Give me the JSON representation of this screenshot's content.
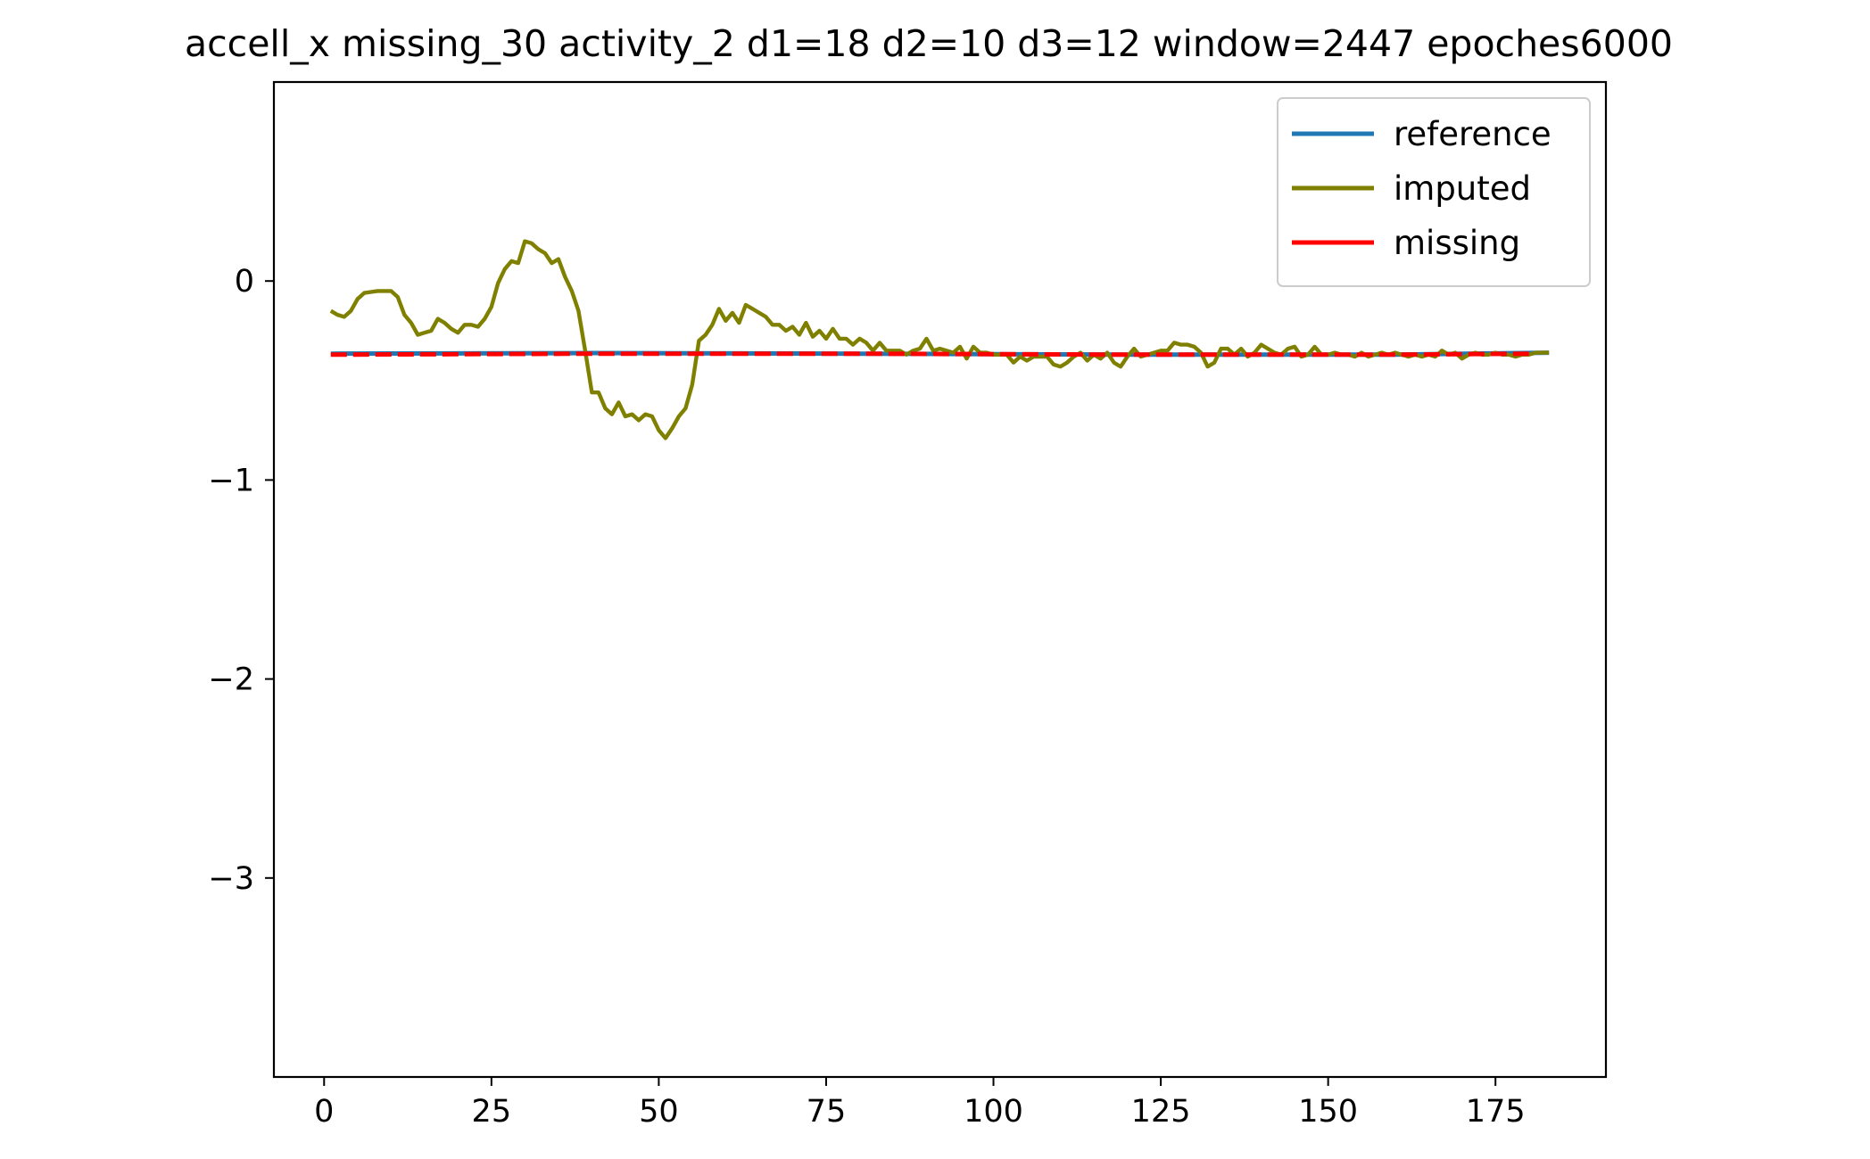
{
  "chart_data": {
    "type": "line",
    "title": "accell_x missing_30 activity_2 d1=18 d2=10 d3=12 window=2447 epoches6000",
    "xlabel": "",
    "ylabel": "",
    "xlim": [
      -7.5,
      191.5
    ],
    "ylim": [
      -4.0,
      1.0
    ],
    "x_ticks": [
      {
        "value": 0,
        "label": "0"
      },
      {
        "value": 25,
        "label": "25"
      },
      {
        "value": 50,
        "label": "50"
      },
      {
        "value": 75,
        "label": "75"
      },
      {
        "value": 100,
        "label": "100"
      },
      {
        "value": 125,
        "label": "125"
      },
      {
        "value": 150,
        "label": "150"
      },
      {
        "value": 175,
        "label": "175"
      }
    ],
    "y_ticks": [
      {
        "value": 0,
        "label": "0"
      },
      {
        "value": -1,
        "label": "−1"
      },
      {
        "value": -2,
        "label": "−2"
      },
      {
        "value": -3,
        "label": "−3"
      }
    ],
    "grid": false,
    "legend_position": "top-right",
    "series": [
      {
        "name": "reference",
        "color": "#1f77b4",
        "points": [
          [
            1,
            -0.365
          ],
          [
            40,
            -0.362
          ],
          [
            80,
            -0.365
          ],
          [
            120,
            -0.37
          ],
          [
            160,
            -0.37
          ],
          [
            183,
            -0.36
          ]
        ]
      },
      {
        "name": "imputed",
        "color": "#808000",
        "points": [
          [
            1,
            -0.15
          ],
          [
            2,
            -0.17
          ],
          [
            3,
            -0.18
          ],
          [
            4,
            -0.15
          ],
          [
            5,
            -0.09
          ],
          [
            6,
            -0.06
          ],
          [
            7,
            -0.055
          ],
          [
            8,
            -0.05
          ],
          [
            9,
            -0.05
          ],
          [
            10,
            -0.05
          ],
          [
            11,
            -0.08
          ],
          [
            12,
            -0.17
          ],
          [
            13,
            -0.21
          ],
          [
            14,
            -0.27
          ],
          [
            15,
            -0.26
          ],
          [
            16,
            -0.25
          ],
          [
            17,
            -0.19
          ],
          [
            18,
            -0.21
          ],
          [
            19,
            -0.24
          ],
          [
            20,
            -0.26
          ],
          [
            21,
            -0.22
          ],
          [
            22,
            -0.22
          ],
          [
            23,
            -0.23
          ],
          [
            24,
            -0.19
          ],
          [
            25,
            -0.13
          ],
          [
            26,
            -0.01
          ],
          [
            27,
            0.06
          ],
          [
            28,
            0.1
          ],
          [
            29,
            0.09
          ],
          [
            30,
            0.2
          ],
          [
            31,
            0.19
          ],
          [
            32,
            0.16
          ],
          [
            33,
            0.14
          ],
          [
            34,
            0.09
          ],
          [
            35,
            0.11
          ],
          [
            36,
            0.02
          ],
          [
            37,
            -0.05
          ],
          [
            38,
            -0.15
          ],
          [
            39,
            -0.35
          ],
          [
            40,
            -0.56
          ],
          [
            41,
            -0.56
          ],
          [
            42,
            -0.64
          ],
          [
            43,
            -0.67
          ],
          [
            44,
            -0.61
          ],
          [
            45,
            -0.68
          ],
          [
            46,
            -0.67
          ],
          [
            47,
            -0.7
          ],
          [
            48,
            -0.67
          ],
          [
            49,
            -0.68
          ],
          [
            50,
            -0.75
          ],
          [
            51,
            -0.79
          ],
          [
            52,
            -0.74
          ],
          [
            53,
            -0.68
          ],
          [
            54,
            -0.64
          ],
          [
            55,
            -0.52
          ],
          [
            56,
            -0.3
          ],
          [
            57,
            -0.27
          ],
          [
            58,
            -0.22
          ],
          [
            59,
            -0.14
          ],
          [
            60,
            -0.2
          ],
          [
            61,
            -0.16
          ],
          [
            62,
            -0.21
          ],
          [
            63,
            -0.12
          ],
          [
            64,
            -0.14
          ],
          [
            65,
            -0.16
          ],
          [
            66,
            -0.18
          ],
          [
            67,
            -0.22
          ],
          [
            68,
            -0.22
          ],
          [
            69,
            -0.25
          ],
          [
            70,
            -0.23
          ],
          [
            71,
            -0.27
          ],
          [
            72,
            -0.21
          ],
          [
            73,
            -0.28
          ],
          [
            74,
            -0.25
          ],
          [
            75,
            -0.29
          ],
          [
            76,
            -0.24
          ],
          [
            77,
            -0.29
          ],
          [
            78,
            -0.29
          ],
          [
            79,
            -0.32
          ],
          [
            80,
            -0.29
          ],
          [
            81,
            -0.31
          ],
          [
            82,
            -0.35
          ],
          [
            83,
            -0.31
          ],
          [
            84,
            -0.35
          ],
          [
            85,
            -0.35
          ],
          [
            86,
            -0.35
          ],
          [
            87,
            -0.37
          ],
          [
            88,
            -0.35
          ],
          [
            89,
            -0.34
          ],
          [
            90,
            -0.29
          ],
          [
            91,
            -0.35
          ],
          [
            92,
            -0.34
          ],
          [
            93,
            -0.35
          ],
          [
            94,
            -0.36
          ],
          [
            95,
            -0.33
          ],
          [
            96,
            -0.39
          ],
          [
            97,
            -0.33
          ],
          [
            98,
            -0.36
          ],
          [
            99,
            -0.36
          ],
          [
            100,
            -0.37
          ],
          [
            101,
            -0.37
          ],
          [
            102,
            -0.37
          ],
          [
            103,
            -0.41
          ],
          [
            104,
            -0.38
          ],
          [
            105,
            -0.4
          ],
          [
            106,
            -0.38
          ],
          [
            107,
            -0.38
          ],
          [
            108,
            -0.38
          ],
          [
            109,
            -0.42
          ],
          [
            110,
            -0.43
          ],
          [
            111,
            -0.41
          ],
          [
            112,
            -0.38
          ],
          [
            113,
            -0.36
          ],
          [
            114,
            -0.4
          ],
          [
            115,
            -0.37
          ],
          [
            116,
            -0.39
          ],
          [
            117,
            -0.36
          ],
          [
            118,
            -0.41
          ],
          [
            119,
            -0.43
          ],
          [
            120,
            -0.38
          ],
          [
            121,
            -0.34
          ],
          [
            122,
            -0.38
          ],
          [
            123,
            -0.37
          ],
          [
            124,
            -0.36
          ],
          [
            125,
            -0.35
          ],
          [
            126,
            -0.35
          ],
          [
            127,
            -0.31
          ],
          [
            128,
            -0.32
          ],
          [
            129,
            -0.32
          ],
          [
            130,
            -0.33
          ],
          [
            131,
            -0.36
          ],
          [
            132,
            -0.43
          ],
          [
            133,
            -0.41
          ],
          [
            134,
            -0.34
          ],
          [
            135,
            -0.34
          ],
          [
            136,
            -0.37
          ],
          [
            137,
            -0.34
          ],
          [
            138,
            -0.38
          ],
          [
            139,
            -0.36
          ],
          [
            140,
            -0.32
          ],
          [
            141,
            -0.34
          ],
          [
            142,
            -0.36
          ],
          [
            143,
            -0.37
          ],
          [
            144,
            -0.34
          ],
          [
            145,
            -0.33
          ],
          [
            146,
            -0.38
          ],
          [
            147,
            -0.37
          ],
          [
            148,
            -0.33
          ],
          [
            149,
            -0.37
          ],
          [
            150,
            -0.37
          ],
          [
            151,
            -0.36
          ],
          [
            152,
            -0.37
          ],
          [
            153,
            -0.37
          ],
          [
            154,
            -0.38
          ],
          [
            155,
            -0.36
          ],
          [
            156,
            -0.38
          ],
          [
            157,
            -0.37
          ],
          [
            158,
            -0.36
          ],
          [
            159,
            -0.37
          ],
          [
            160,
            -0.36
          ],
          [
            161,
            -0.37
          ],
          [
            162,
            -0.38
          ],
          [
            163,
            -0.37
          ],
          [
            164,
            -0.38
          ],
          [
            165,
            -0.37
          ],
          [
            166,
            -0.38
          ],
          [
            167,
            -0.35
          ],
          [
            168,
            -0.37
          ],
          [
            169,
            -0.36
          ],
          [
            170,
            -0.39
          ],
          [
            171,
            -0.37
          ],
          [
            172,
            -0.36
          ],
          [
            173,
            -0.37
          ],
          [
            174,
            -0.37
          ],
          [
            175,
            -0.36
          ],
          [
            176,
            -0.37
          ],
          [
            177,
            -0.37
          ],
          [
            178,
            -0.38
          ],
          [
            179,
            -0.37
          ],
          [
            180,
            -0.37
          ],
          [
            181,
            -0.36
          ],
          [
            182,
            -0.36
          ],
          [
            183,
            -0.36
          ]
        ]
      },
      {
        "name": "missing",
        "color": "#ff0000",
        "dashed": true,
        "points": [
          [
            1,
            -0.37
          ],
          [
            40,
            -0.365
          ],
          [
            80,
            -0.365
          ],
          [
            120,
            -0.37
          ],
          [
            160,
            -0.37
          ],
          [
            180,
            -0.365
          ]
        ]
      }
    ]
  }
}
